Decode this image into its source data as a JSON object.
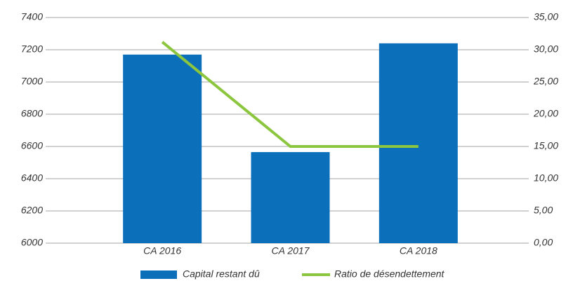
{
  "chart_data": {
    "type": "bar",
    "categories": [
      "CA 2016",
      "CA 2017",
      "CA 2018"
    ],
    "series": [
      {
        "name": "Capital restant dû",
        "color": "#0b6fba",
        "type": "bar",
        "values": [
          7170,
          6565,
          7240
        ]
      },
      {
        "name": "Ratio de désendettement",
        "color": "#8cc63f",
        "type": "line",
        "axis": "y2",
        "values": [
          31.2,
          15,
          15
        ]
      }
    ],
    "ylim": [
      6000,
      7400
    ],
    "yticks": [
      6000,
      6200,
      6400,
      6600,
      6800,
      7000,
      7200,
      7400
    ],
    "y2lim": [
      0,
      35
    ],
    "y2ticks": [
      {
        "value": 0,
        "label": "0,00"
      },
      {
        "value": 5,
        "label": "5,00"
      },
      {
        "value": 10,
        "label": "10,00"
      },
      {
        "value": 15,
        "label": "15,00"
      },
      {
        "value": 20,
        "label": "20,00"
      },
      {
        "value": 25,
        "label": "25,00"
      },
      {
        "value": 30,
        "label": "30,00"
      },
      {
        "value": 35,
        "label": "35,00"
      }
    ],
    "grid": true,
    "legend": "bottom"
  }
}
